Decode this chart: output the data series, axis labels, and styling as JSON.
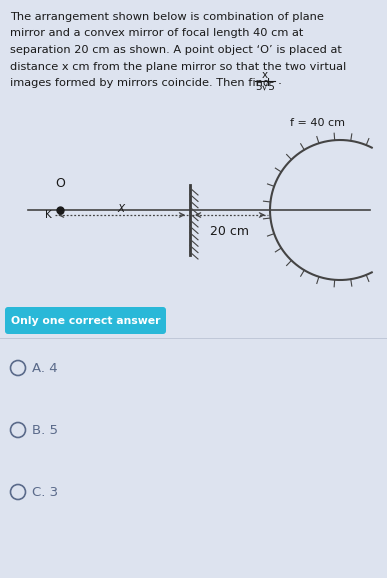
{
  "bg_color": "#dde3ef",
  "question_text_color": "#1a1a1a",
  "diagram_color": "#3a3a3a",
  "mirror_hatch_color": "#444444",
  "convex_color": "#444444",
  "dot_color": "#1a1a1a",
  "axis_color": "#444444",
  "arrow_color": "#444444",
  "badge_bg": "#29b8d8",
  "badge_text_color": "#ffffff",
  "option_color": "#5a6a8a",
  "fraction_color": "#1a1a1a",
  "focal_label_color": "#1a1a1a",
  "label_color": "#1a1a1a",
  "sep_line_color": "#c0c8d8",
  "question_lines": [
    "The arrangement shown below is combination of plane",
    "mirror and a convex mirror of focal length 40 cm at",
    "separation 20 cm as shown. A point object ‘O’ is placed at",
    "distance x cm from the plane mirror so that the two virtual",
    "images formed by mirrors coincide. Then find"
  ],
  "frac_num": "x",
  "frac_den": "5√5",
  "focal_label": "f = 40 cm",
  "dist_label": "20 cm",
  "obj_label": "O",
  "K_label": "K",
  "X_label": "X",
  "badge_text": "Only one correct answer",
  "options": [
    "A. 4",
    "B. 5",
    "C. 3"
  ],
  "fig_w": 3.87,
  "fig_h": 5.78,
  "dpi": 100
}
